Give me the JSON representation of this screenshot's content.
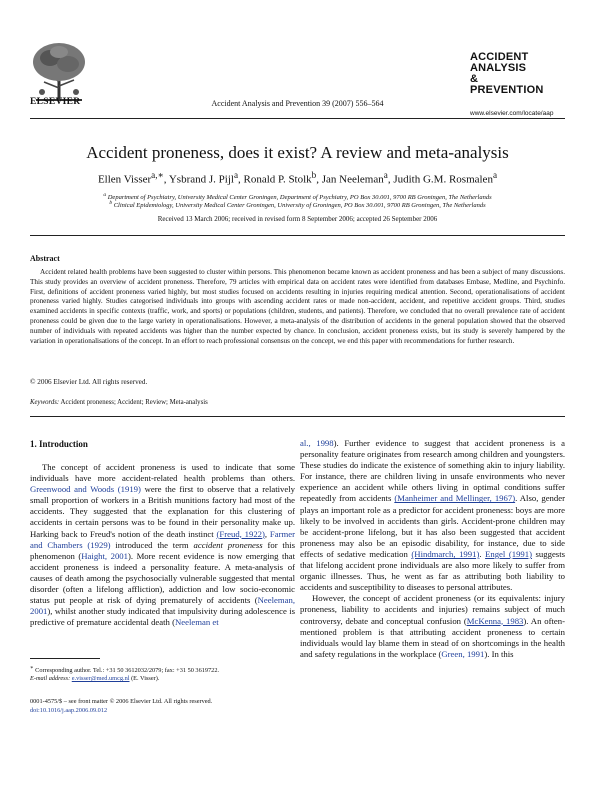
{
  "header": {
    "publisher": "ELSEVIER",
    "journal_citation": "Accident Analysis and Prevention 39 (2007) 556–564",
    "brand_lines": [
      "ACCIDENT",
      "ANALYSIS",
      "&",
      "PREVENTION"
    ],
    "brand_url": "www.elsevier.com/locate/aap"
  },
  "article": {
    "title": "Accident proneness, does it exist? A review and meta-analysis",
    "authors": [
      {
        "name": "Ellen Visser",
        "sup": "a,∗"
      },
      {
        "name": "Ysbrand J. Pijl",
        "sup": "a"
      },
      {
        "name": "Ronald P. Stolk",
        "sup": "b"
      },
      {
        "name": "Jan Neeleman",
        "sup": "a"
      },
      {
        "name": "Judith G.M. Rosmalen",
        "sup": "a"
      }
    ],
    "affiliations": [
      {
        "sup": "a",
        "text": "Department of Psychiatry, University Medical Center Groningen, Department of Psychiatry, PO Box 30.001, 9700 RB Groningen, The Netherlands"
      },
      {
        "sup": "b",
        "text": "Clinical Epidemiology, University Medical Center Groningen, University of Groningen, PO Box 30.001, 9700 RB Groningen, The Netherlands"
      }
    ],
    "received": "Received 13 March 2006; received in revised form 8 September 2006; accepted 26 September 2006"
  },
  "abstract": {
    "heading": "Abstract",
    "text": "Accident related health problems have been suggested to cluster within persons. This phenomenon became known as accident proneness and has been a subject of many discussions. This study provides an overview of accident proneness. Therefore, 79 articles with empirical data on accident rates were identified from databases Embase, Medline, and Psychinfo. First, definitions of accident proneness varied highly, but most studies focused on accidents resulting in injuries requiring medical attention. Second, operationalisations of accident proneness varied highly. Studies categorised individuals into groups with ascending accident rates or made non-accident, accident, and repetitive accident groups. Third, studies examined accidents in specific contexts (traffic, work, and sports) or populations (children, students, and patients). Therefore, we concluded that no overall prevalence rate of accident proneness could be given due to the large variety in operationalisations. However, a meta-analysis of the distribution of accidents in the general population showed that the observed number of individuals with repeated accidents was higher than the number expected by chance. In conclusion, accident proneness exists, but its study is severely hampered by the variation in operationalisations of the concept. In an effort to reach professional consensus on the concept, we end this paper with recommendations for further research.",
    "copyright": "© 2006 Elsevier Ltd. All rights reserved.",
    "keywords_label": "Keywords:",
    "keywords": "Accident proneness; Accident; Review; Meta-analysis"
  },
  "intro": {
    "heading": "1. Introduction",
    "left": {
      "p1_a": "The concept of accident proneness is used to indicate that some individuals have more accident-related health problems than others. ",
      "ref_greenwood": "Greenwood and Woods (1919)",
      "p1_b": " were the first to observe that a relatively small proportion of workers in a British munitions factory had most of the accidents. They suggested that the explanation for this clustering of accidents in certain persons was to be found in their personality make up. Harking back to Freud's notion of the death instinct ",
      "ref_freud": "(Freud, 1922)",
      "p1_c": ", ",
      "ref_farmer": "Farmer and Chambers (1929)",
      "p1_d": " introduced the term ",
      "p1_em": "accident proneness",
      "p1_e": " for this phenomenon (",
      "ref_haight": "Haight, 2001",
      "p1_f": "). More recent evidence is now emerging that accident proneness is indeed a personality feature. A meta-analysis of causes of death among the psychosocially vulnerable suggested that mental disorder (often a lifelong affliction), addiction and low socio-economic status put people at risk of dying prematurely of accidents (",
      "ref_neeleman2001": "Neeleman, 2001",
      "p1_g": "), whilst another study indicated that impulsivity during adolescence is predictive of premature accidental death (",
      "ref_neeleman_et": "Neeleman et"
    },
    "right": {
      "ref_al1998": "al., 1998",
      "p1_h": "). Further evidence to suggest that accident proneness is a personality feature originates from research among children and youngsters. These studies do indicate the existence of something akin to injury liability. For instance, there are children living in unsafe environments who never experience an accident while others living in optimal conditions suffer repeatedly from accidents ",
      "ref_manheimer": "(Manheimer and Mellinger, 1967)",
      "p1_i": ". Also, gender plays an important role as a predictor for accident proneness: boys are more likely to be involved in accidents than girls. Accident-prone children may be accident-prone lifelong, but it has also been suggested that accident proneness may also be an episodic disability, for instance, due to side effects of sedative medication ",
      "ref_hindmarch": "(Hindmarch, 1991)",
      "p1_j": ". ",
      "ref_engel": "Engel (1991)",
      "p1_k": " suggests that lifelong accident prone individuals are also more likely to suffer from organic illnesses. Thus, he went as far as attributing both liability to accidents and susceptibility to diseases to personal attributes.",
      "p2_a": "However, the concept of accident proneness (or its equivalents: injury proneness, liability to accidents and injuries) remains subject of much controversy, debate and conceptual confusion (",
      "ref_mckenna": "McKenna, 1983",
      "p2_b": "). An often-mentioned problem is that attributing accident proneness to certain individuals would lay blame them in stead of on shortcomings in the health and safety regulations in the workplace (",
      "ref_green": "Green, 1991",
      "p2_c": "). In this"
    }
  },
  "footnote": {
    "marker": "∗",
    "text": "Corresponding author. Tel.: +31 50 3612032/2079; fax: +31 50 3619722.",
    "email_label": "E-mail address:",
    "email": "e.visser@med.umcg.nl",
    "email_suffix": "(E. Visser)."
  },
  "issn": {
    "line1": "0001-4575/$ – see front matter © 2006 Elsevier Ltd. All rights reserved.",
    "line2": "doi:10.1016/j.aap.2006.09.012"
  }
}
